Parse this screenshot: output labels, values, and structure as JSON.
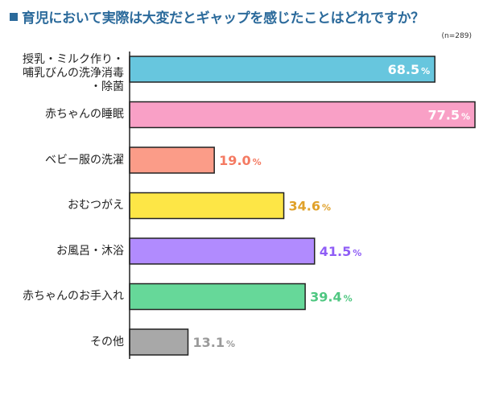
{
  "chart_data": {
    "type": "bar",
    "orientation": "horizontal",
    "title": "育児において実際は大変だとギャップを感じたことはどれですか？",
    "subtitle": "(n=289)",
    "categories": [
      "授乳・ミルク作り・哺乳びんの洗浄消毒・除菌",
      "赤ちゃんの睡眠",
      "ベビー服の洗濯",
      "おむつがえ",
      "お風呂・沐浴",
      "赤ちゃんのお手入れ",
      "その他"
    ],
    "category_lines": [
      [
        "授乳・ミルク作り・",
        "哺乳びんの洗浄消毒",
        "・除菌"
      ],
      [
        "赤ちゃんの睡眠"
      ],
      [
        "ベビー服の洗濯"
      ],
      [
        "おむつがえ"
      ],
      [
        "お風呂・沐浴"
      ],
      [
        "赤ちゃんのお手入れ"
      ],
      [
        "その他"
      ]
    ],
    "values": [
      68.5,
      77.5,
      19.0,
      34.6,
      41.5,
      39.4,
      13.1
    ],
    "value_labels": [
      "68.5",
      "77.5",
      "19.0",
      "34.6",
      "41.5",
      "39.4",
      "13.1"
    ],
    "unit": "%",
    "bar_colors": [
      "#67c6de",
      "#f9a0c6",
      "#fb9c88",
      "#fde646",
      "#b18bfe",
      "#66d899",
      "#a8a8a8"
    ],
    "label_colors": [
      "#ffffff",
      "#ffffff",
      "#f47a62",
      "#e0a12a",
      "#8f5df6",
      "#4fc781",
      "#9a9a9a"
    ],
    "xlim": [
      0,
      77.5
    ],
    "grid": false
  }
}
